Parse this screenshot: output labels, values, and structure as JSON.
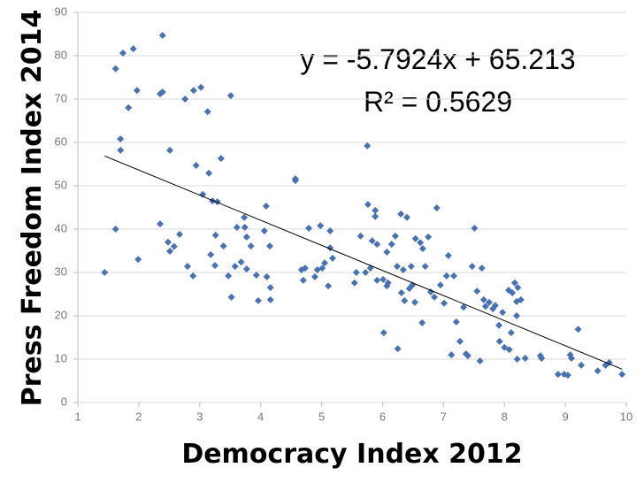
{
  "chart_data": {
    "type": "scatter",
    "xlabel": "Democracy Index 2012",
    "ylabel": "Press Freedom Index 2014",
    "annotations": [
      "y = -5.7924x + 65.213",
      "R² = 0.5629"
    ],
    "trendline": {
      "slope": -5.7924,
      "intercept": 65.213,
      "color": "#000000"
    },
    "color": "#4a72b0",
    "grid": true,
    "xlim": [
      1,
      10
    ],
    "xticks": [
      1,
      2,
      3,
      4,
      5,
      6,
      7,
      8,
      9,
      10
    ],
    "ylim": [
      0,
      90
    ],
    "yticks": [
      0,
      10,
      20,
      30,
      40,
      50,
      60,
      70,
      80,
      90
    ],
    "x": [
      1.44,
      1.62,
      1.62,
      1.7,
      1.7,
      1.74,
      1.83,
      1.91,
      1.97,
      1.99,
      2.39,
      2.35,
      2.39,
      2.35,
      2.48,
      2.51,
      2.51,
      2.58,
      2.67,
      2.76,
      2.8,
      2.89,
      2.9,
      2.94,
      3.02,
      3.05,
      3.13,
      3.15,
      3.21,
      3.18,
      3.26,
      3.25,
      3.29,
      3.35,
      3.39,
      3.47,
      3.51,
      3.52,
      3.58,
      3.61,
      3.68,
      3.73,
      3.74,
      3.77,
      3.77,
      3.84,
      3.93,
      3.96,
      4.06,
      4.09,
      4.1,
      4.15,
      4.16,
      4.16,
      4.57,
      4.57,
      4.67,
      4.7,
      4.73,
      4.79,
      4.89,
      4.93,
      4.98,
      5.01,
      5.05,
      5.11,
      5.14,
      5.14,
      5.18,
      5.54,
      5.57,
      5.64,
      5.72,
      5.75,
      5.76,
      5.8,
      5.83,
      5.88,
      5.88,
      5.91,
      5.91,
      6.01,
      6.02,
      6.07,
      6.07,
      6.09,
      6.15,
      6.21,
      6.24,
      6.25,
      6.3,
      6.31,
      6.34,
      6.36,
      6.4,
      6.44,
      6.47,
      6.49,
      6.53,
      6.54,
      6.62,
      6.65,
      6.66,
      6.7,
      6.75,
      6.79,
      6.85,
      6.89,
      6.95,
      7.01,
      7.05,
      7.08,
      7.13,
      7.17,
      7.21,
      7.27,
      7.33,
      7.37,
      7.4,
      7.47,
      7.51,
      7.55,
      7.6,
      7.63,
      7.66,
      7.69,
      7.75,
      7.81,
      7.85,
      7.91,
      7.92,
      7.97,
      8.0,
      8.07,
      8.08,
      8.11,
      8.13,
      8.17,
      8.2,
      8.21,
      8.2,
      8.22,
      8.27,
      8.34,
      8.59,
      8.61,
      8.88,
      8.98,
      9.04,
      9.08,
      9.1,
      9.21,
      9.26,
      9.53,
      9.66,
      9.72,
      9.93
    ],
    "values": [
      30,
      77,
      40,
      60.8,
      58.2,
      80.6,
      68,
      81.6,
      72,
      33,
      84.7,
      71.2,
      71.6,
      41.2,
      37,
      34.9,
      58.2,
      36,
      38.8,
      70,
      31.4,
      29.2,
      72,
      54.7,
      72.7,
      48,
      67.1,
      52.9,
      46.5,
      34.1,
      38.6,
      31.6,
      46.3,
      56.3,
      36.1,
      29.2,
      70.8,
      24.3,
      31.4,
      40.4,
      32.4,
      42.7,
      40.4,
      38.2,
      30.8,
      36.1,
      29.4,
      23.5,
      39.6,
      45.3,
      29,
      36.1,
      26.5,
      23.7,
      51.6,
      51.2,
      30.6,
      28.2,
      31,
      40.2,
      29,
      30.6,
      40.8,
      31,
      32.2,
      26.9,
      35.7,
      39.6,
      33.3,
      27.6,
      30,
      38.4,
      30,
      59.2,
      45.7,
      31,
      37.3,
      42.9,
      44.3,
      28.2,
      36.5,
      28.4,
      16.1,
      26.9,
      34.7,
      27.6,
      36.5,
      38.4,
      31.4,
      12.4,
      43.5,
      25.3,
      30.6,
      23.5,
      42.7,
      26.3,
      31.4,
      27.1,
      23.1,
      37.8,
      36.9,
      18.4,
      35.5,
      31.4,
      38.2,
      25.5,
      24.3,
      44.9,
      27.1,
      22.9,
      29.2,
      33.9,
      11,
      29.2,
      18.6,
      14.1,
      22,
      11.2,
      10.8,
      31.4,
      40.2,
      25.7,
      9.6,
      31,
      23.7,
      22.2,
      23.1,
      21.6,
      22.4,
      17.8,
      14.1,
      20.8,
      12.7,
      25.9,
      12.2,
      16.1,
      25.3,
      27.6,
      23.3,
      10,
      20,
      26.5,
      23.7,
      10.2,
      10.8,
      10.2,
      6.5,
      6.5,
      6.3,
      11,
      10.2,
      16.9,
      8.6,
      7.3,
      8.6,
      9.2,
      6.5
    ]
  }
}
